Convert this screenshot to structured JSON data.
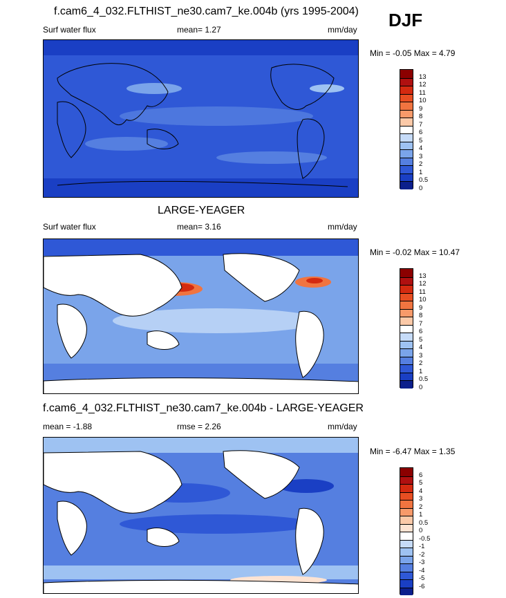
{
  "season": "DJF",
  "panels": [
    {
      "id": "model",
      "title": "f.cam6_4_032.FLTHIST_ne30.cam7_ke.004b (yrs 1995-2004)",
      "variable": "Surf water flux",
      "stat1": "mean=   1.27",
      "stat2": "",
      "units": "mm/day",
      "minmax": "Min =  -0.05 Max =   4.79",
      "colorbar_labels": [
        "13",
        "12",
        "11",
        "10",
        "9",
        "8",
        "7",
        "6",
        "5",
        "4",
        "3",
        "2",
        "1",
        "0.5",
        "0"
      ],
      "colorbar_colors": [
        "#8b0000",
        "#b01010",
        "#d42a10",
        "#e84e22",
        "#f07440",
        "#f79a6a",
        "#fbc9a8",
        "#ffffff",
        "#c6dbf8",
        "#9ec2f2",
        "#7aa4ea",
        "#557fe0",
        "#2f58d6",
        "#1a3fc4",
        "#0c1f8c"
      ]
    },
    {
      "id": "obs",
      "title": "LARGE-YEAGER",
      "variable": "Surf water flux",
      "stat1": "mean=   3.16",
      "stat2": "",
      "units": "mm/day",
      "minmax": "Min =  -0.02 Max =  10.47",
      "colorbar_labels": [
        "13",
        "12",
        "11",
        "10",
        "9",
        "8",
        "7",
        "6",
        "5",
        "4",
        "3",
        "2",
        "1",
        "0.5",
        "0"
      ],
      "colorbar_colors": [
        "#8b0000",
        "#b01010",
        "#d42a10",
        "#e84e22",
        "#f07440",
        "#f79a6a",
        "#fbc9a8",
        "#ffffff",
        "#c6dbf8",
        "#9ec2f2",
        "#7aa4ea",
        "#557fe0",
        "#2f58d6",
        "#1a3fc4",
        "#0c1f8c"
      ]
    },
    {
      "id": "diff",
      "title": "f.cam6_4_032.FLTHIST_ne30.cam7_ke.004b - LARGE-YEAGER",
      "variable": "mean =  -1.88",
      "stat1": "rmse =   2.26",
      "stat2": "",
      "units": "mm/day",
      "minmax": "Min =  -6.47 Max =   1.35",
      "colorbar_labels": [
        "6",
        "5",
        "4",
        "3",
        "2",
        "1",
        "0.5",
        "0",
        "-0.5",
        "-1",
        "-2",
        "-3",
        "-4",
        "-5",
        "-6"
      ],
      "colorbar_colors": [
        "#8b0000",
        "#b01010",
        "#d42a10",
        "#e84e22",
        "#f07440",
        "#f79a6a",
        "#fbc9a8",
        "#fde3d2",
        "#ffffff",
        "#c6dbf8",
        "#9ec2f2",
        "#7aa4ea",
        "#557fe0",
        "#2f58d6",
        "#1a3fc4",
        "#0c1f8c"
      ]
    }
  ]
}
